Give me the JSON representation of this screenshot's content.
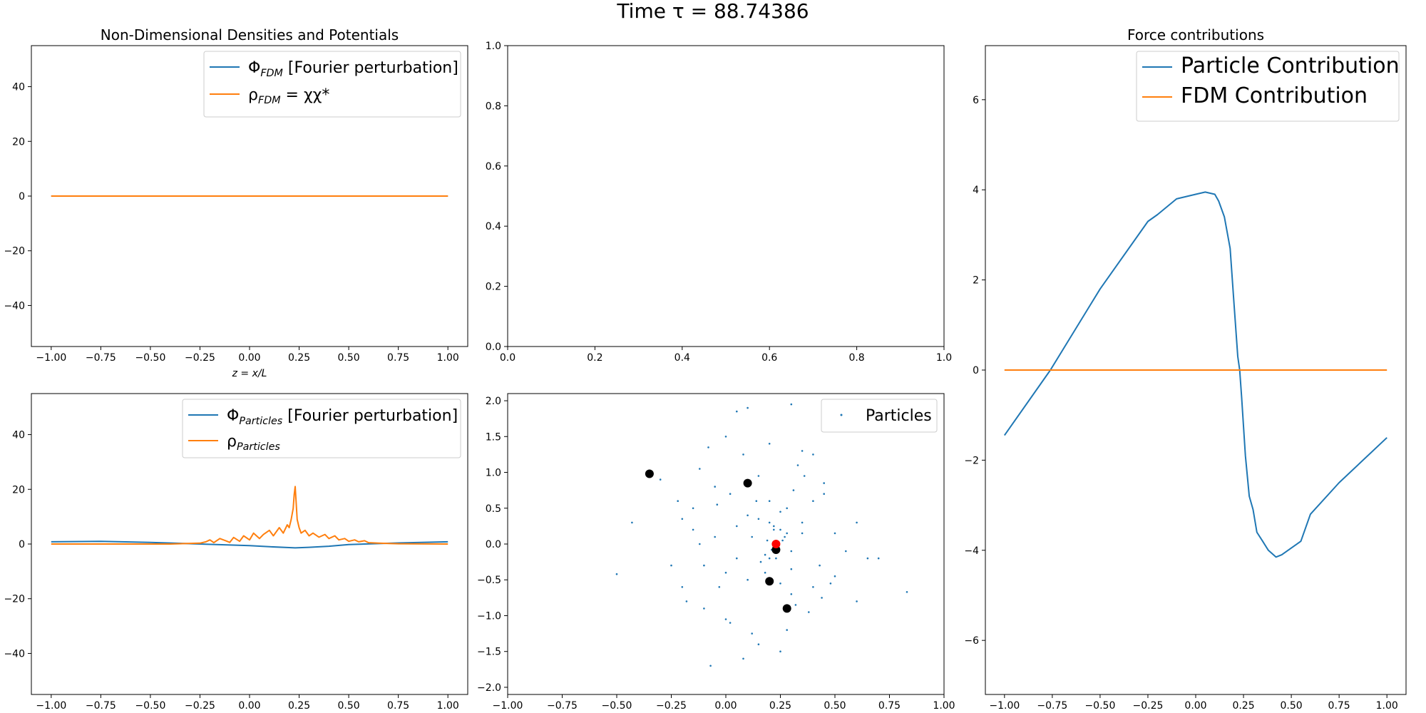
{
  "figure": {
    "suptitle": "Time τ = 88.74386"
  },
  "colors": {
    "blue": "#1f77b4",
    "orange": "#ff7f0e",
    "red": "#ff0000",
    "black": "#000000"
  },
  "chart_data": [
    {
      "id": "fdm",
      "type": "line",
      "title": "Non-Dimensional Densities and Potentials",
      "xlabel": "z = x/L",
      "ylabel": "",
      "xlim": [
        -1.1,
        1.1
      ],
      "ylim": [
        -55,
        55
      ],
      "xticks": [
        -1.0,
        -0.75,
        -0.5,
        -0.25,
        0.0,
        0.25,
        0.5,
        0.75,
        1.0
      ],
      "xtick_labels": [
        "−1.00",
        "−0.75",
        "−0.50",
        "−0.25",
        "0.00",
        "0.25",
        "0.50",
        "0.75",
        "1.00"
      ],
      "yticks": [
        -40,
        -20,
        0,
        20,
        40
      ],
      "ytick_labels": [
        "−40",
        "−20",
        "0",
        "20",
        "40"
      ],
      "legend": "top-right",
      "series": [
        {
          "name": "ΦFDM [Fourier perturbation]",
          "label_main": "Φ",
          "label_sub": "FDM",
          "label_rest": " [Fourier perturbation]",
          "color": "#1f77b4",
          "x": [
            -1.0,
            1.0
          ],
          "y": [
            0,
            0
          ]
        },
        {
          "name": "ρFDM = χχ*",
          "label_main": "ρ",
          "label_sub": "FDM",
          "label_rest": " = χχ*",
          "color": "#ff7f0e",
          "x": [
            -1.0,
            1.0
          ],
          "y": [
            0,
            0
          ]
        }
      ]
    },
    {
      "id": "empty",
      "type": "scatter",
      "title": "",
      "xlim": [
        0,
        1
      ],
      "ylim": [
        0,
        1
      ],
      "xticks": [
        0.0,
        0.2,
        0.4,
        0.6,
        0.8,
        1.0
      ],
      "xtick_labels": [
        "0.0",
        "0.2",
        "0.4",
        "0.6",
        "0.8",
        "1.0"
      ],
      "yticks": [
        0.0,
        0.2,
        0.4,
        0.6,
        0.8,
        1.0
      ],
      "ytick_labels": [
        "0.0",
        "0.2",
        "0.4",
        "0.6",
        "0.8",
        "1.0"
      ],
      "series": []
    },
    {
      "id": "particles-density",
      "type": "line",
      "title": "",
      "xlim": [
        -1.1,
        1.1
      ],
      "ylim": [
        -55,
        55
      ],
      "xticks": [
        -1.0,
        -0.75,
        -0.5,
        -0.25,
        0.0,
        0.25,
        0.5,
        0.75,
        1.0
      ],
      "xtick_labels": [
        "−1.00",
        "−0.75",
        "−0.50",
        "−0.25",
        "0.00",
        "0.25",
        "0.50",
        "0.75",
        "1.00"
      ],
      "yticks": [
        -40,
        -20,
        0,
        20,
        40
      ],
      "ytick_labels": [
        "−40",
        "−20",
        "0",
        "20",
        "40"
      ],
      "legend": "top-right",
      "series": [
        {
          "name": "ΦParticles [Fourier perturbation]",
          "label_main": "Φ",
          "label_sub": "Particles",
          "label_rest": " [Fourier perturbation]",
          "color": "#1f77b4",
          "x": [
            -1.0,
            -0.75,
            -0.5,
            -0.25,
            0.0,
            0.1,
            0.2,
            0.23,
            0.3,
            0.4,
            0.5,
            0.75,
            1.0
          ],
          "y": [
            0.8,
            1.0,
            0.6,
            0.0,
            -0.6,
            -1.0,
            -1.3,
            -1.4,
            -1.2,
            -0.8,
            -0.2,
            0.4,
            0.8
          ]
        },
        {
          "name": "ρParticles",
          "label_main": "ρ",
          "label_sub": "Particles",
          "label_rest": "",
          "color": "#ff7f0e",
          "x": [
            -1.0,
            -0.4,
            -0.25,
            -0.22,
            -0.2,
            -0.18,
            -0.15,
            -0.12,
            -0.1,
            -0.08,
            -0.05,
            -0.03,
            0.0,
            0.02,
            0.05,
            0.07,
            0.1,
            0.12,
            0.15,
            0.17,
            0.19,
            0.2,
            0.21,
            0.22,
            0.225,
            0.23,
            0.235,
            0.24,
            0.25,
            0.26,
            0.28,
            0.3,
            0.32,
            0.35,
            0.38,
            0.4,
            0.43,
            0.45,
            0.48,
            0.5,
            0.53,
            0.55,
            0.58,
            0.6,
            0.65,
            0.7,
            0.75,
            1.0
          ],
          "y": [
            0,
            0,
            0.3,
            0.8,
            1.5,
            0.5,
            2.0,
            1.2,
            0.6,
            2.4,
            1.0,
            3.0,
            1.5,
            4.0,
            2.0,
            3.5,
            5.0,
            3.0,
            6.0,
            4.0,
            7.0,
            6.0,
            9.0,
            13.0,
            18.0,
            21.0,
            15.0,
            9.0,
            6.0,
            4.0,
            5.0,
            3.0,
            4.0,
            2.5,
            3.5,
            2.0,
            3.0,
            1.5,
            2.0,
            1.0,
            1.5,
            0.8,
            1.2,
            0.5,
            0.3,
            0.2,
            0.1,
            0
          ]
        }
      ]
    },
    {
      "id": "particles-scatter",
      "type": "scatter",
      "title": "",
      "xlim": [
        -1.0,
        1.0
      ],
      "ylim": [
        -2.1,
        2.1
      ],
      "xticks": [
        -1.0,
        -0.75,
        -0.5,
        -0.25,
        0.0,
        0.25,
        0.5,
        0.75,
        1.0
      ],
      "xtick_labels": [
        "−1.00",
        "−0.75",
        "−0.50",
        "−0.25",
        "0.00",
        "0.25",
        "0.50",
        "0.75",
        "1.00"
      ],
      "yticks": [
        -2.0,
        -1.5,
        -1.0,
        -0.5,
        0.0,
        0.5,
        1.0,
        1.5,
        2.0
      ],
      "ytick_labels": [
        "−2.0",
        "−1.5",
        "−1.0",
        "−0.5",
        "0.0",
        "0.5",
        "1.0",
        "1.5",
        "2.0"
      ],
      "legend": "top-right",
      "series": [
        {
          "name": "Particles",
          "color": "#1f77b4",
          "marker": "small-dot",
          "x": [
            -0.5,
            -0.43,
            -0.3,
            -0.22,
            -0.2,
            -0.18,
            -0.15,
            -0.12,
            -0.1,
            -0.08,
            -0.05,
            -0.03,
            0.0,
            0.02,
            0.05,
            0.08,
            0.1,
            0.12,
            0.15,
            0.18,
            0.2,
            0.22,
            0.25,
            0.28,
            0.3,
            0.33,
            0.35,
            0.38,
            0.4,
            0.43,
            0.45,
            0.48,
            0.5,
            0.55,
            0.6,
            0.7,
            0.83,
            -0.25,
            -0.2,
            -0.15,
            -0.1,
            -0.05,
            0.0,
            0.05,
            0.1,
            0.15,
            0.2,
            0.25,
            0.3,
            0.35,
            0.4,
            0.45,
            0.5,
            0.12,
            0.18,
            0.22,
            0.26,
            0.3,
            0.16,
            0.2,
            0.24,
            0.28,
            0.19,
            0.23,
            0.27,
            0.21,
            0.25,
            0.14,
            0.32,
            0.08,
            -0.07,
            0.0,
            0.05,
            0.1,
            0.3,
            0.35,
            -0.12,
            0.4,
            0.6,
            0.65,
            0.02,
            0.15,
            0.28,
            0.36,
            -0.04,
            0.44,
            0.2,
            0.25,
            0.31
          ],
          "y": [
            -0.42,
            0.3,
            0.9,
            0.6,
            0.35,
            -0.8,
            0.2,
            1.05,
            -0.3,
            1.35,
            0.1,
            -0.6,
            -1.05,
            0.7,
            -0.2,
            1.25,
            0.4,
            -1.25,
            0.95,
            -0.4,
            1.4,
            0.2,
            -1.5,
            0.5,
            -0.7,
            1.1,
            0.3,
            -0.95,
            0.6,
            -0.3,
            0.85,
            -0.55,
            0.15,
            -0.1,
            0.3,
            -0.2,
            -0.67,
            -0.3,
            -0.6,
            0.5,
            -0.9,
            0.8,
            -0.4,
            0.25,
            -0.5,
            0.35,
            -0.2,
            0.45,
            -0.35,
            0.15,
            -0.6,
            0.7,
            -0.45,
            0.1,
            -0.15,
            0.25,
            0.05,
            -0.1,
            -0.25,
            0.3,
            -0.05,
            0.15,
            0.05,
            -0.2,
            0.1,
            -0.08,
            0.2,
            0.6,
            -0.85,
            -1.6,
            -1.7,
            1.5,
            1.85,
            1.9,
            1.95,
            1.3,
            0.0,
            1.25,
            -0.8,
            -0.2,
            -1.1,
            -1.4,
            -1.2,
            0.95,
            0.55,
            -0.75,
            0.6,
            -0.55,
            0.75
          ]
        },
        {
          "name": "",
          "color": "#000000",
          "marker": "large-dot",
          "x": [
            -0.35,
            0.1,
            0.23,
            0.2,
            0.28
          ],
          "y": [
            0.98,
            0.85,
            -0.08,
            -0.52,
            -0.9
          ]
        },
        {
          "name": "",
          "color": "#ff0000",
          "marker": "large-dot",
          "x": [
            0.23
          ],
          "y": [
            0.0
          ]
        }
      ]
    },
    {
      "id": "force",
      "type": "line",
      "title": "Force contributions",
      "xlim": [
        -1.1,
        1.1
      ],
      "ylim": [
        -7.2,
        7.2
      ],
      "xticks": [
        -1.0,
        -0.75,
        -0.5,
        -0.25,
        0.0,
        0.25,
        0.5,
        0.75,
        1.0
      ],
      "xtick_labels": [
        "−1.00",
        "−0.75",
        "−0.50",
        "−0.25",
        "0.00",
        "0.25",
        "0.50",
        "0.75",
        "1.00"
      ],
      "yticks": [
        -6,
        -4,
        -2,
        0,
        2,
        4,
        6
      ],
      "ytick_labels": [
        "−6",
        "−4",
        "−2",
        "0",
        "2",
        "4",
        "6"
      ],
      "legend": "top-right",
      "series": [
        {
          "name": "Particle Contribution",
          "color": "#1f77b4",
          "x": [
            -1.0,
            -0.76,
            -0.5,
            -0.25,
            -0.2,
            -0.1,
            0.0,
            0.05,
            0.1,
            0.12,
            0.15,
            0.18,
            0.2,
            0.22,
            0.23,
            0.24,
            0.26,
            0.28,
            0.3,
            0.32,
            0.35,
            0.38,
            0.42,
            0.45,
            0.5,
            0.55,
            0.6,
            0.75,
            1.0
          ],
          "y": [
            -1.45,
            0.0,
            1.8,
            3.3,
            3.45,
            3.8,
            3.9,
            3.95,
            3.9,
            3.75,
            3.4,
            2.7,
            1.5,
            0.3,
            0.0,
            -0.6,
            -1.9,
            -2.8,
            -3.1,
            -3.6,
            -3.8,
            -4.0,
            -4.15,
            -4.1,
            -3.95,
            -3.8,
            -3.2,
            -2.5,
            -1.5
          ]
        },
        {
          "name": "FDM Contribution",
          "color": "#ff7f0e",
          "x": [
            -1.0,
            1.0
          ],
          "y": [
            0,
            0
          ]
        }
      ]
    }
  ]
}
